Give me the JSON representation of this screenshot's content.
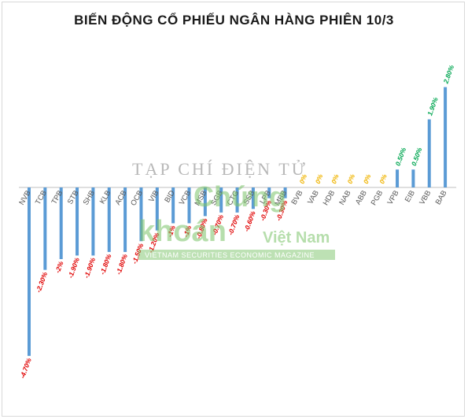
{
  "chart_data": {
    "type": "bar",
    "title": "BIẾN ĐỘNG CỔ PHIẾU NGÂN HÀNG PHIÊN 10/3",
    "xlabel": "",
    "ylabel": "",
    "ylim": [
      -5,
      3
    ],
    "grid": false,
    "categories": [
      "NVB",
      "TCB",
      "TPB",
      "STB",
      "SHB",
      "KLB",
      "ACB",
      "OCB",
      "VIB",
      "BID",
      "VCB",
      "MSB",
      "SGB",
      "CTG",
      "SSB",
      "LPB",
      "MBB",
      "BVB",
      "VAB",
      "HDB",
      "NAB",
      "ABB",
      "PGB",
      "VPB",
      "EIB",
      "VBB",
      "BAB"
    ],
    "values": [
      -4.7,
      -2.3,
      -2,
      -1.9,
      -1.9,
      -1.8,
      -1.8,
      -1.5,
      -1.2,
      -1,
      -1,
      -0.8,
      -0.7,
      -0.7,
      -0.6,
      -0.3,
      -0.3,
      0,
      0,
      0,
      0,
      0,
      0,
      0.5,
      0.5,
      1.9,
      2.8
    ],
    "data_labels": [
      "-4.70%",
      "-2.30%",
      "-2%",
      "-1.90%",
      "-1.90%",
      "-1.80%",
      "-1.80%",
      "-1.50%",
      "-1.20%",
      "-1%",
      "-1%",
      "-0.80%",
      "-0.70%",
      "-0.70%",
      "-0.60%",
      "-0.30%",
      "-0.30%",
      "0%",
      "0%",
      "0%",
      "0%",
      "0%",
      "0%",
      "0.50%",
      "0.50%",
      "1.90%",
      "2.80%"
    ],
    "colors": {
      "bar": "#5b9bd5",
      "negative_label": "#e00000",
      "zero_label": "#f0b400",
      "positive_label": "#00a651",
      "tick_label": "#595959",
      "axis": "#bfbfbf"
    }
  },
  "watermark": {
    "line1": "TẠP CHÍ ĐIỆN TỬ",
    "word1": "Chứng",
    "word2": "khoán",
    "word3": "Việt Nam",
    "tagline": "VIETNAM SECURITIES ECONOMIC MAGAZINE"
  }
}
